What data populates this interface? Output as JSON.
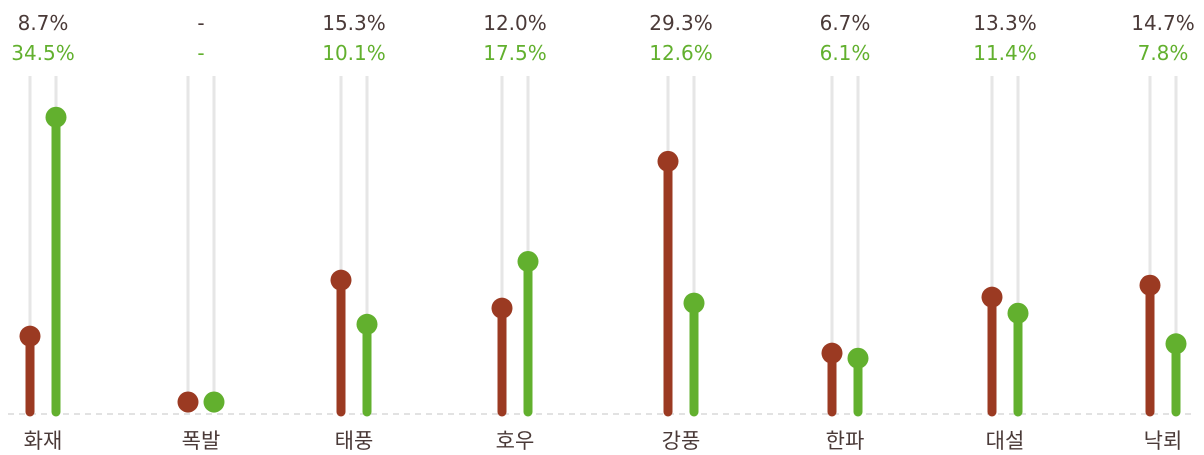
{
  "chart_data": {
    "type": "lollipop",
    "categories": [
      "화재",
      "폭발",
      "태풍",
      "호우",
      "강풍",
      "한파",
      "대설",
      "낙뢰"
    ],
    "series": [
      {
        "color": "#9b3a22",
        "values": [
          8.7,
          null,
          15.3,
          12.0,
          29.3,
          6.7,
          13.3,
          14.7
        ],
        "labels": [
          "8.7%",
          "-",
          "15.3%",
          "12.0%",
          "29.3%",
          "6.7%",
          "13.3%",
          "14.7%"
        ]
      },
      {
        "color": "#62b02e",
        "values": [
          34.5,
          null,
          10.1,
          17.5,
          12.6,
          6.1,
          11.4,
          7.8
        ],
        "labels": [
          "34.5%",
          "-",
          "10.1%",
          "17.5%",
          "12.6%",
          "6.1%",
          "11.4%",
          "7.8%"
        ]
      }
    ],
    "ylim": [
      0,
      35
    ],
    "grid": false,
    "legend": "none",
    "baseline_style": "dashed",
    "track_color": "#e6e6e6"
  }
}
